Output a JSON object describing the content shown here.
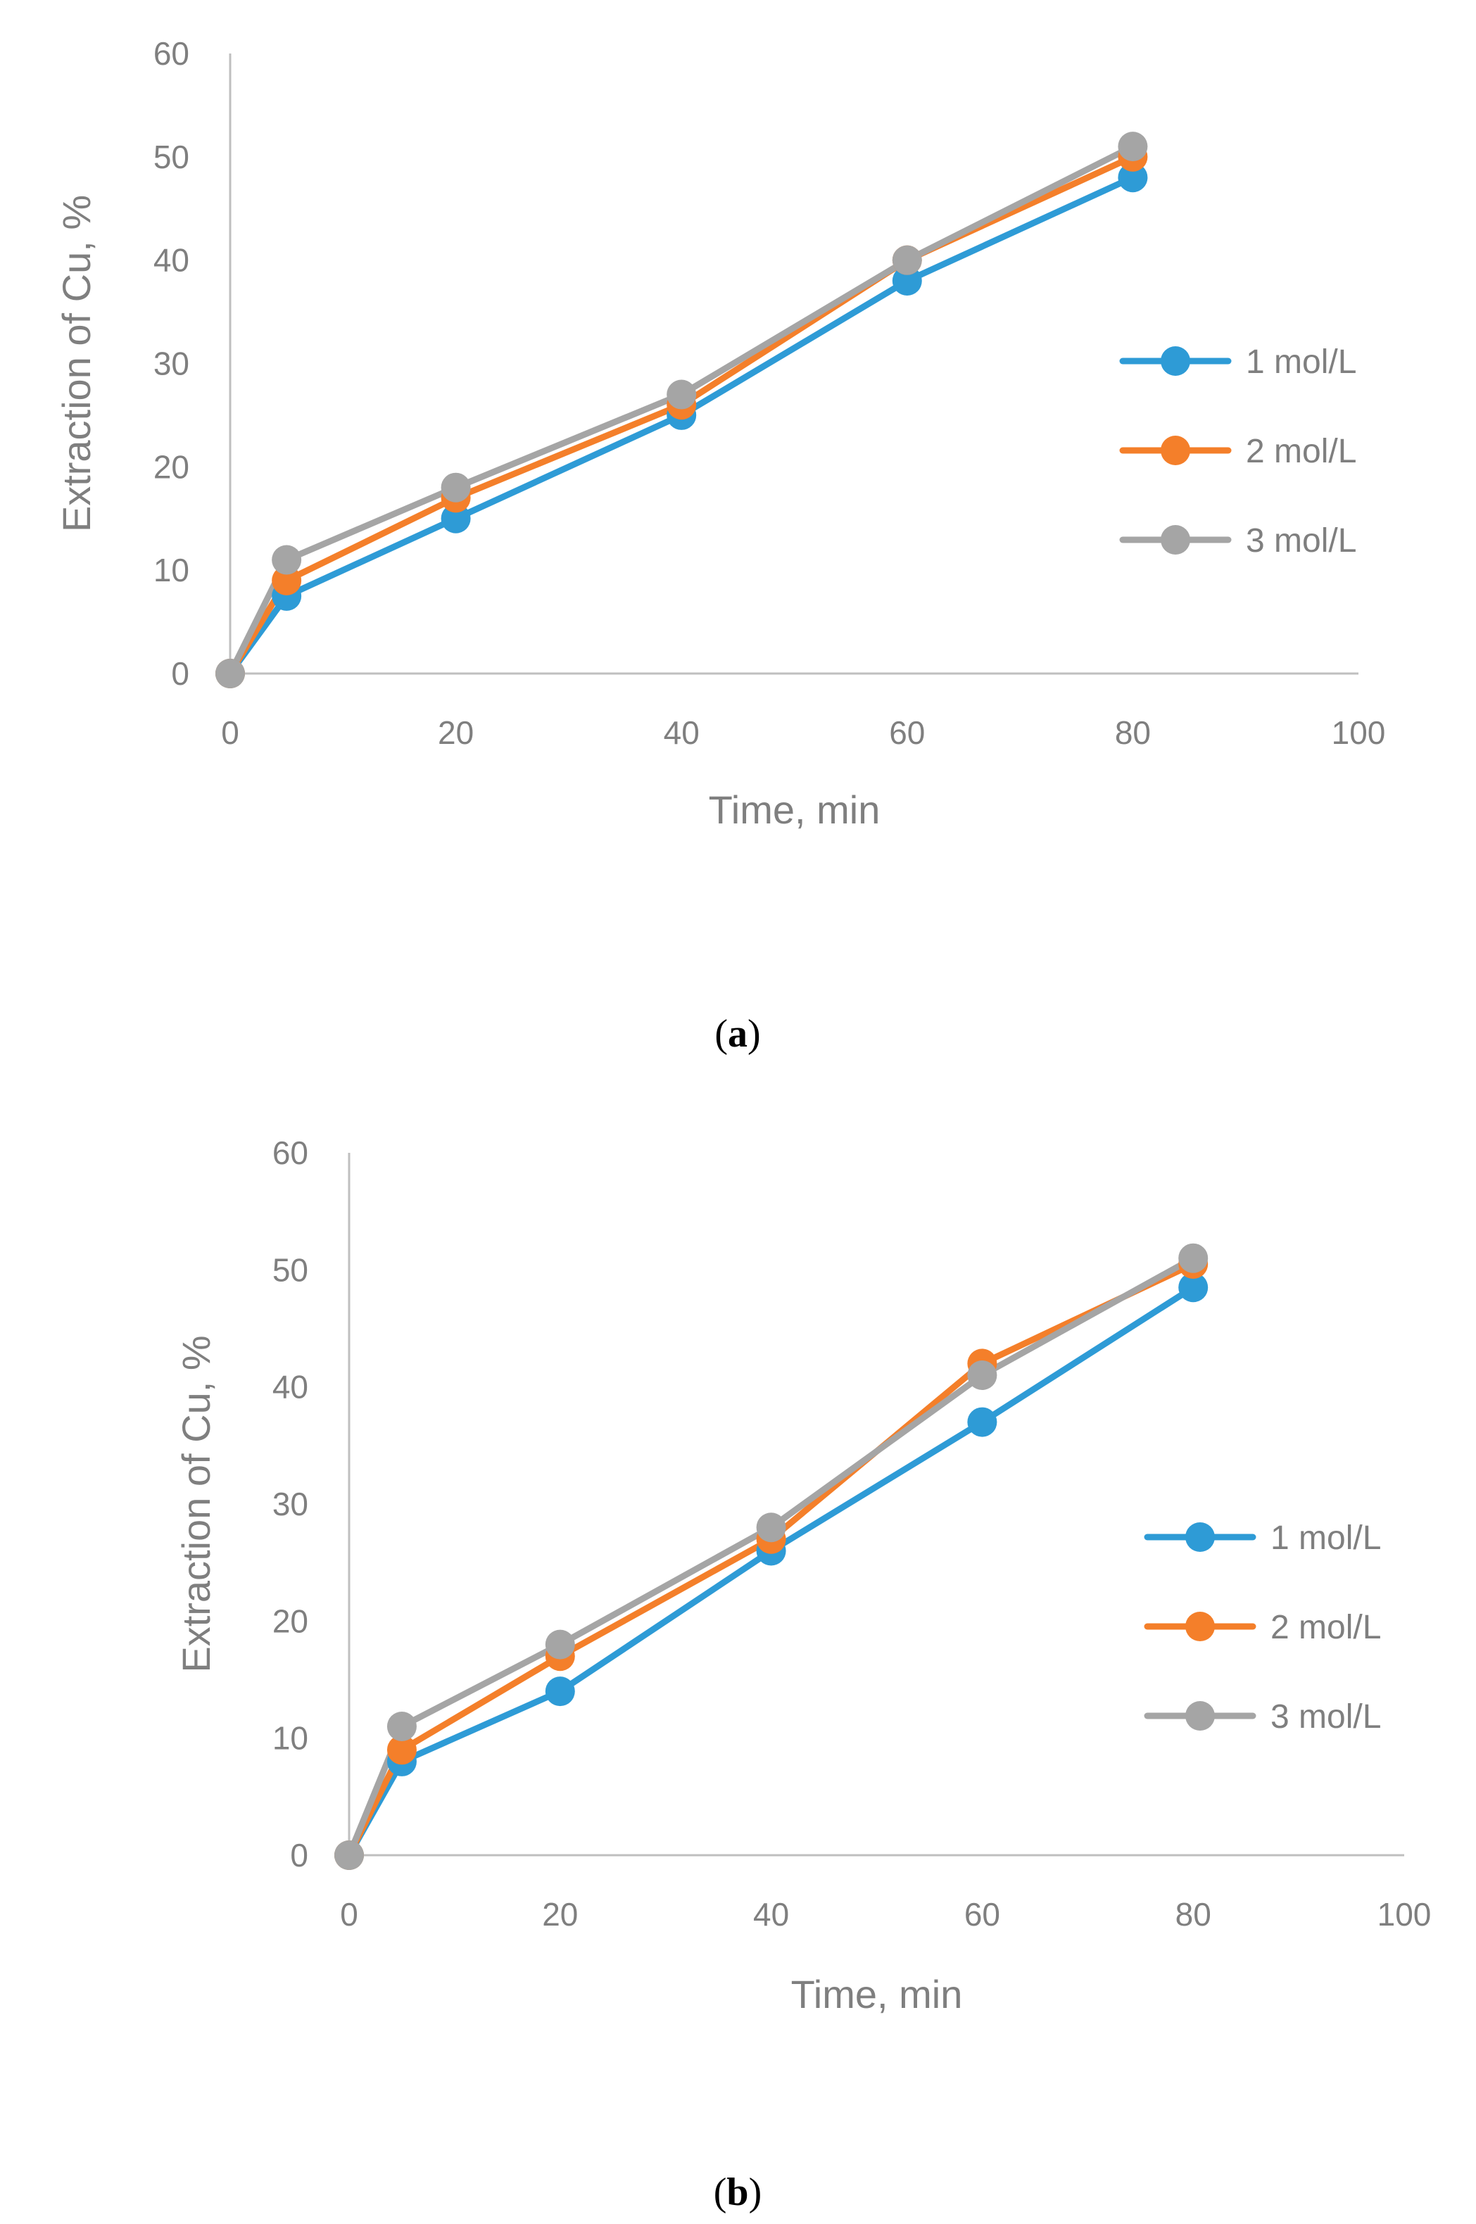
{
  "colors": {
    "series_1": "#2E9BD6",
    "series_2": "#F47F2A",
    "series_3": "#A5A5A5",
    "axis": "#BFBFBF",
    "text": "#7F7F7F"
  },
  "chart_data": [
    {
      "type": "line",
      "panel": "a",
      "caption": {
        "open": "(",
        "letter": "a",
        "close": ")"
      },
      "xlabel": "Time, min",
      "ylabel": "Extraction of Cu, %",
      "xlim": [
        0,
        100
      ],
      "ylim": [
        0,
        60
      ],
      "xticks": [
        0,
        20,
        40,
        60,
        80,
        100
      ],
      "yticks": [
        0,
        10,
        20,
        30,
        40,
        50,
        60
      ],
      "grid": false,
      "legend": "right",
      "x": [
        0,
        5,
        20,
        40,
        60,
        80
      ],
      "series": [
        {
          "name": "1 mol/L",
          "values": [
            0,
            7.5,
            15,
            25,
            38,
            48
          ]
        },
        {
          "name": "2 mol/L",
          "values": [
            0,
            9,
            17,
            26,
            40,
            50
          ]
        },
        {
          "name": "3 mol/L",
          "values": [
            0,
            11,
            18,
            27,
            40,
            51
          ]
        }
      ]
    },
    {
      "type": "line",
      "panel": "b",
      "caption": {
        "open": "(",
        "letter": "b",
        "close": ")"
      },
      "xlabel": "Time, min",
      "ylabel": "Extraction of Cu, %",
      "xlim": [
        0,
        100
      ],
      "ylim": [
        0,
        60
      ],
      "xticks": [
        0,
        20,
        40,
        60,
        80,
        100
      ],
      "yticks": [
        0,
        10,
        20,
        30,
        40,
        50,
        60
      ],
      "grid": false,
      "legend": "right",
      "x": [
        0,
        5,
        20,
        40,
        60,
        80
      ],
      "series": [
        {
          "name": "1 mol/L",
          "values": [
            0,
            8,
            14,
            26,
            37,
            48.5
          ]
        },
        {
          "name": "2 mol/L",
          "values": [
            0,
            9,
            17,
            27,
            42,
            50.5
          ]
        },
        {
          "name": "3 mol/L",
          "values": [
            0,
            11,
            18,
            28,
            41,
            51
          ]
        }
      ]
    }
  ]
}
